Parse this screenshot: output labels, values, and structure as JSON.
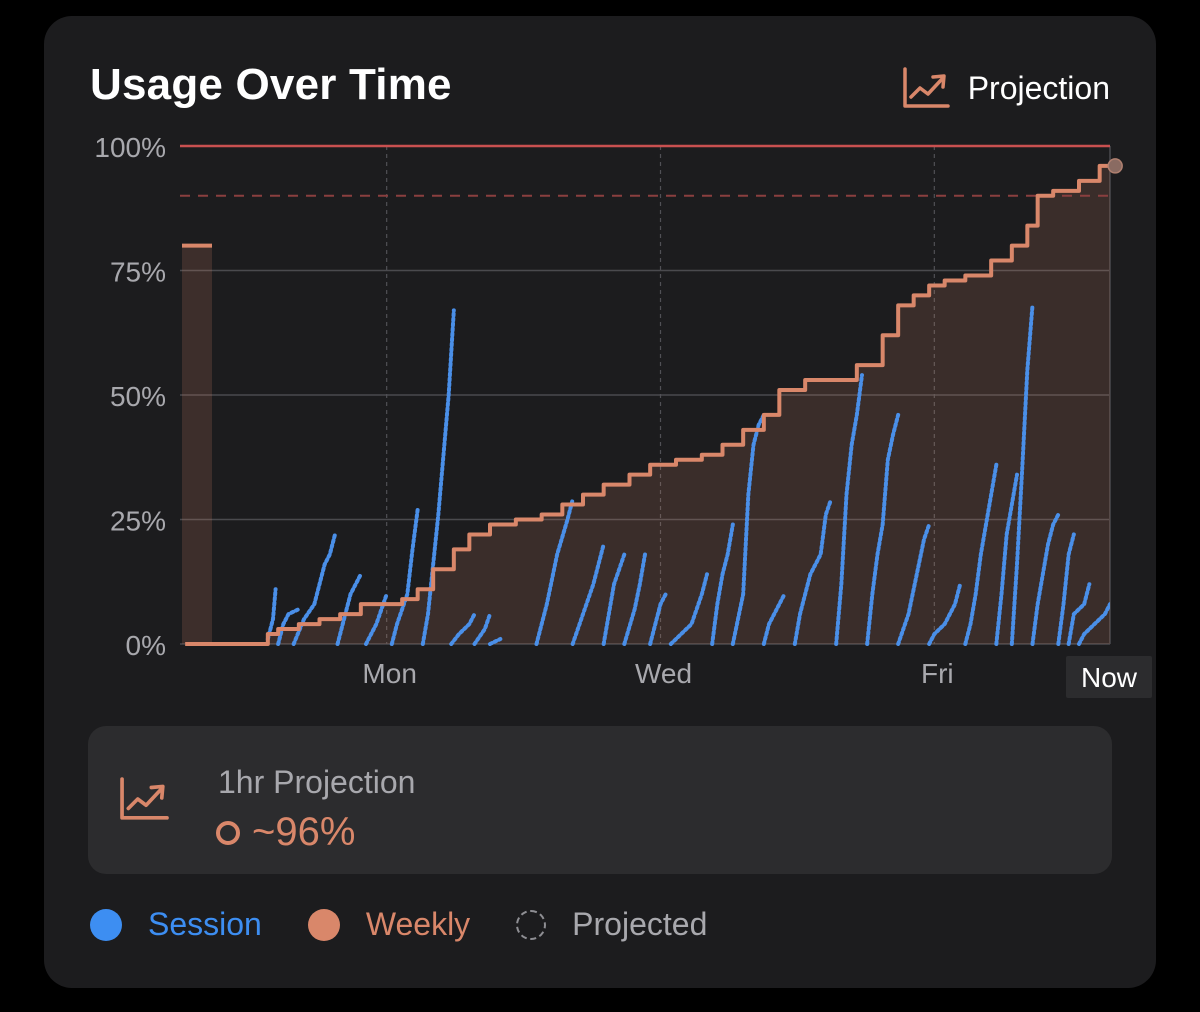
{
  "card": {
    "title": "Usage Over Time",
    "projection_toggle": {
      "label": "Projection",
      "icon": "trend-chart-icon"
    }
  },
  "panel": {
    "label": "1hr Projection",
    "value": "~96%",
    "icon": "trend-chart-icon"
  },
  "legend": [
    {
      "label": "Session",
      "color": "#3d8ef2",
      "style": "solid"
    },
    {
      "label": "Weekly",
      "color": "#d9876a",
      "style": "solid"
    },
    {
      "label": "Projected",
      "color": "#8e8e93",
      "style": "dashed"
    }
  ],
  "colors": {
    "session": "#4a8fe8",
    "weekly": "#d9876a",
    "limit": "#c95050",
    "background": "#1c1c1e"
  },
  "chart_data": {
    "type": "line",
    "title": "Usage Over Time",
    "ylim": [
      0,
      100
    ],
    "xlim": [
      0,
      180
    ],
    "yticks": [
      0,
      25,
      50,
      75,
      100
    ],
    "ytick_labels": [
      "0%",
      "25%",
      "50%",
      "75%",
      "100%"
    ],
    "xticks": [
      {
        "x": 40,
        "label": "Mon"
      },
      {
        "x": 93,
        "label": "Wed"
      },
      {
        "x": 146,
        "label": "Fri"
      }
    ],
    "now": {
      "x": 180,
      "label": "Now"
    },
    "limit_line": 100,
    "warning_line": 90,
    "previous_week": {
      "value": 80
    },
    "projected_point": {
      "x": 181,
      "y": 96
    },
    "series": [
      {
        "name": "Weekly",
        "points": [
          [
            1,
            0
          ],
          [
            14,
            0
          ],
          [
            17,
            2
          ],
          [
            19,
            3
          ],
          [
            23,
            4
          ],
          [
            27,
            5
          ],
          [
            31,
            6
          ],
          [
            35,
            8
          ],
          [
            40,
            8
          ],
          [
            43,
            9
          ],
          [
            46,
            11
          ],
          [
            49,
            15
          ],
          [
            53,
            19
          ],
          [
            56,
            22
          ],
          [
            60,
            24
          ],
          [
            65,
            25
          ],
          [
            70,
            26
          ],
          [
            74,
            28
          ],
          [
            78,
            30
          ],
          [
            82,
            32
          ],
          [
            87,
            34
          ],
          [
            91,
            36
          ],
          [
            96,
            37
          ],
          [
            101,
            38
          ],
          [
            105,
            40
          ],
          [
            109,
            43
          ],
          [
            113,
            46
          ],
          [
            116,
            51
          ],
          [
            121,
            53
          ],
          [
            126,
            53
          ],
          [
            131,
            56
          ],
          [
            136,
            62
          ],
          [
            139,
            68
          ],
          [
            142,
            70
          ],
          [
            145,
            72
          ],
          [
            148,
            73
          ],
          [
            152,
            74
          ],
          [
            157,
            77
          ],
          [
            161,
            80
          ],
          [
            164,
            84
          ],
          [
            166,
            90
          ],
          [
            169,
            91
          ],
          [
            174,
            93
          ],
          [
            178,
            96
          ],
          [
            180,
            96
          ]
        ]
      },
      {
        "name": "Session",
        "points": [
          [
            17,
            1
          ],
          [
            18,
            5
          ],
          [
            18.5,
            11
          ],
          [
            19,
            0
          ],
          [
            20,
            4
          ],
          [
            21,
            6
          ],
          [
            23,
            7
          ],
          [
            22,
            0
          ],
          [
            24,
            5
          ],
          [
            26,
            8
          ],
          [
            27,
            12
          ],
          [
            28,
            16
          ],
          [
            29,
            18
          ],
          [
            30,
            22
          ],
          [
            30.5,
            0
          ],
          [
            32,
            6
          ],
          [
            33,
            10
          ],
          [
            35,
            14
          ],
          [
            36,
            0
          ],
          [
            38,
            4
          ],
          [
            39,
            7
          ],
          [
            40,
            10
          ],
          [
            41,
            0
          ],
          [
            42,
            4
          ],
          [
            44,
            10
          ],
          [
            45,
            19
          ],
          [
            46,
            27
          ],
          [
            47,
            0
          ],
          [
            48,
            6
          ],
          [
            50,
            26
          ],
          [
            51,
            38
          ],
          [
            52,
            50
          ],
          [
            53,
            67
          ],
          [
            52.5,
            0
          ],
          [
            54,
            2
          ],
          [
            56,
            4
          ],
          [
            57,
            6
          ],
          [
            57,
            0
          ],
          [
            59,
            3
          ],
          [
            60,
            6
          ],
          [
            60,
            0
          ],
          [
            62,
            1
          ],
          [
            69,
            0
          ],
          [
            71,
            8
          ],
          [
            73,
            18
          ],
          [
            75,
            25
          ],
          [
            76,
            29
          ],
          [
            76,
            0
          ],
          [
            78,
            6
          ],
          [
            80,
            12
          ],
          [
            81,
            16
          ],
          [
            82,
            20
          ],
          [
            82,
            0
          ],
          [
            83,
            6
          ],
          [
            84,
            12
          ],
          [
            85,
            15
          ],
          [
            86,
            18
          ],
          [
            86,
            0
          ],
          [
            88,
            7
          ],
          [
            89,
            12
          ],
          [
            90,
            18
          ],
          [
            91,
            0
          ],
          [
            92,
            4
          ],
          [
            93,
            8
          ],
          [
            94,
            10
          ],
          [
            95,
            0
          ],
          [
            97,
            2
          ],
          [
            99,
            4
          ],
          [
            100,
            7
          ],
          [
            101,
            10
          ],
          [
            102,
            14
          ],
          [
            103,
            0
          ],
          [
            104,
            8
          ],
          [
            105,
            14
          ],
          [
            106,
            18
          ],
          [
            107,
            24
          ],
          [
            107,
            0
          ],
          [
            109,
            10
          ],
          [
            110,
            30
          ],
          [
            111,
            40
          ],
          [
            112,
            44
          ],
          [
            113,
            46
          ],
          [
            113,
            0
          ],
          [
            114,
            4
          ],
          [
            116,
            8
          ],
          [
            117,
            10
          ],
          [
            119,
            0
          ],
          [
            120,
            6
          ],
          [
            121,
            10
          ],
          [
            122,
            14
          ],
          [
            124,
            18
          ],
          [
            125,
            26
          ],
          [
            126,
            29
          ],
          [
            127,
            0
          ],
          [
            128,
            12
          ],
          [
            129,
            30
          ],
          [
            130,
            40
          ],
          [
            131,
            46
          ],
          [
            132,
            54
          ],
          [
            133,
            0
          ],
          [
            134,
            10
          ],
          [
            135,
            18
          ],
          [
            136,
            24
          ],
          [
            137,
            37
          ],
          [
            138,
            42
          ],
          [
            139,
            46
          ],
          [
            139,
            0
          ],
          [
            141,
            6
          ],
          [
            143,
            16
          ],
          [
            144,
            21
          ],
          [
            145,
            24
          ],
          [
            145,
            0
          ],
          [
            146,
            2
          ],
          [
            148,
            4
          ],
          [
            150,
            8
          ],
          [
            151,
            12
          ],
          [
            152,
            0
          ],
          [
            153,
            4
          ],
          [
            154,
            10
          ],
          [
            155,
            18
          ],
          [
            156,
            24
          ],
          [
            157,
            30
          ],
          [
            158,
            36
          ],
          [
            158,
            0
          ],
          [
            159,
            10
          ],
          [
            160,
            22
          ],
          [
            161,
            28
          ],
          [
            162,
            34
          ],
          [
            161,
            0
          ],
          [
            162,
            16
          ],
          [
            163,
            35
          ],
          [
            164,
            55
          ],
          [
            165,
            68
          ],
          [
            165,
            0
          ],
          [
            166,
            8
          ],
          [
            167,
            14
          ],
          [
            168,
            20
          ],
          [
            169,
            24
          ],
          [
            170,
            26
          ],
          [
            170,
            0
          ],
          [
            171,
            8
          ],
          [
            172,
            18
          ],
          [
            173,
            22
          ],
          [
            172,
            0
          ],
          [
            173,
            6
          ],
          [
            175,
            8
          ],
          [
            176,
            12
          ],
          [
            174,
            0
          ],
          [
            175,
            2
          ],
          [
            177,
            4
          ],
          [
            179,
            6
          ],
          [
            180,
            8
          ]
        ]
      }
    ]
  }
}
